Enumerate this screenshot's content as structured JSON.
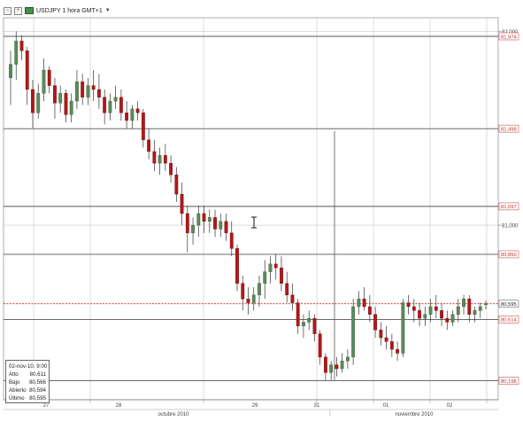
{
  "toolbar": {
    "minimize_icon": "minus-box-icon",
    "expand_icon": "plus-box-icon",
    "title": "USDJPY 1 hora GMT+1",
    "dropdown_icon": "chevron-down-icon"
  },
  "ohlc_panel": {
    "date": "02-nov-10, 9:00",
    "rows": [
      {
        "label": "Alto",
        "value": "80,611"
      },
      {
        "label": "Bajo",
        "value": "80,566"
      },
      {
        "label": "Abierto",
        "value": "80,594"
      },
      {
        "label": "Último",
        "value": "80,595"
      }
    ]
  },
  "chart_data": {
    "type": "candlestick",
    "instrument": "USDJPY",
    "timeframe": "1 hora GMT+1",
    "colors": {
      "up": "#5a8a5a",
      "down": "#b01818",
      "wick": "#333333",
      "grid": "#c8c8c8",
      "current_price_line": "#cc2222"
    },
    "ylim": [
      80.1,
      82.07
    ],
    "y_ticks": [
      {
        "value": 82.0,
        "label": "82,000"
      },
      {
        "value": 81.0,
        "label": "81,000"
      }
    ],
    "horizontal_levels": [
      {
        "value": 81.974,
        "label": "81,974"
      },
      {
        "value": 81.498,
        "label": "81,498"
      },
      {
        "value": 81.097,
        "label": "81,097"
      },
      {
        "value": 80.85,
        "label": "80,850"
      },
      {
        "value": 80.514,
        "label": "80,514"
      },
      {
        "value": 80.198,
        "label": "80,198"
      }
    ],
    "current_price": {
      "value": 80.595,
      "label": "80,595"
    },
    "x_day_labels": [
      "27",
      "28",
      "29",
      "31",
      "01",
      "02"
    ],
    "x_month_labels": [
      "octubre 2010",
      "noviembre 2010"
    ],
    "grid": true,
    "candles": [
      [
        81.76,
        81.9,
        81.62,
        81.83
      ],
      [
        81.83,
        82.0,
        81.75,
        81.95
      ],
      [
        81.95,
        81.98,
        81.85,
        81.9
      ],
      [
        81.9,
        81.92,
        81.62,
        81.7
      ],
      [
        81.7,
        81.75,
        81.5,
        81.58
      ],
      [
        81.58,
        81.73,
        81.55,
        81.68
      ],
      [
        81.68,
        81.86,
        81.64,
        81.8
      ],
      [
        81.8,
        81.82,
        81.68,
        81.72
      ],
      [
        81.72,
        81.76,
        81.55,
        81.63
      ],
      [
        81.63,
        81.72,
        81.58,
        81.68
      ],
      [
        81.68,
        81.7,
        81.53,
        81.57
      ],
      [
        81.57,
        81.68,
        81.53,
        81.64
      ],
      [
        81.64,
        81.8,
        81.6,
        81.74
      ],
      [
        81.74,
        81.78,
        81.62,
        81.66
      ],
      [
        81.66,
        81.76,
        81.62,
        81.72
      ],
      [
        81.72,
        81.8,
        81.64,
        81.7
      ],
      [
        81.7,
        81.78,
        81.6,
        81.66
      ],
      [
        81.66,
        81.7,
        81.52,
        81.58
      ],
      [
        81.58,
        81.68,
        81.54,
        81.64
      ],
      [
        81.64,
        81.72,
        81.6,
        81.66
      ],
      [
        81.66,
        81.7,
        81.54,
        81.58
      ],
      [
        81.58,
        81.64,
        81.5,
        81.54
      ],
      [
        81.54,
        81.62,
        81.5,
        81.6
      ],
      [
        81.6,
        81.64,
        81.54,
        81.58
      ],
      [
        81.58,
        81.6,
        81.4,
        81.44
      ],
      [
        81.44,
        81.5,
        81.34,
        81.38
      ],
      [
        81.38,
        81.44,
        81.28,
        81.32
      ],
      [
        81.32,
        81.4,
        81.26,
        81.36
      ],
      [
        81.36,
        81.42,
        81.28,
        81.32
      ],
      [
        81.32,
        81.36,
        81.22,
        81.26
      ],
      [
        81.26,
        81.3,
        81.12,
        81.16
      ],
      [
        81.16,
        81.22,
        81.0,
        81.06
      ],
      [
        81.06,
        81.1,
        80.86,
        80.96
      ],
      [
        80.96,
        81.04,
        80.9,
        81.0
      ],
      [
        81.0,
        81.1,
        80.94,
        81.06
      ],
      [
        81.06,
        81.1,
        80.96,
        81.02
      ],
      [
        81.02,
        81.08,
        80.96,
        81.04
      ],
      [
        81.04,
        81.08,
        80.94,
        80.98
      ],
      [
        80.98,
        81.06,
        80.94,
        81.02
      ],
      [
        81.02,
        81.06,
        80.92,
        80.96
      ],
      [
        80.96,
        81.02,
        80.84,
        80.88
      ],
      [
        80.88,
        80.9,
        80.66,
        80.7
      ],
      [
        80.7,
        80.74,
        80.56,
        80.62
      ],
      [
        80.62,
        80.68,
        80.54,
        80.6
      ],
      [
        80.6,
        80.68,
        80.56,
        80.64
      ],
      [
        80.64,
        80.74,
        80.58,
        80.7
      ],
      [
        80.7,
        80.82,
        80.62,
        80.76
      ],
      [
        80.76,
        80.84,
        80.7,
        80.8
      ],
      [
        80.8,
        80.85,
        80.72,
        80.78
      ],
      [
        80.78,
        80.84,
        80.66,
        80.7
      ],
      [
        80.7,
        80.76,
        80.6,
        80.64
      ],
      [
        80.64,
        80.7,
        80.56,
        80.6
      ],
      [
        80.6,
        80.62,
        80.44,
        80.48
      ],
      [
        80.48,
        80.54,
        80.42,
        80.5
      ],
      [
        80.5,
        80.56,
        80.46,
        80.52
      ],
      [
        80.52,
        80.54,
        80.4,
        80.44
      ],
      [
        80.44,
        80.46,
        80.28,
        80.32
      ],
      [
        80.32,
        80.34,
        80.2,
        80.24
      ],
      [
        80.24,
        80.3,
        80.2,
        80.28
      ],
      [
        80.28,
        80.32,
        80.22,
        80.26
      ],
      [
        80.26,
        80.34,
        80.24,
        80.3
      ],
      [
        80.3,
        80.36,
        80.26,
        80.32
      ],
      [
        80.32,
        80.62,
        80.28,
        80.58
      ],
      [
        80.58,
        80.66,
        80.54,
        80.62
      ],
      [
        80.62,
        80.68,
        80.56,
        80.58
      ],
      [
        80.58,
        80.64,
        80.5,
        80.54
      ],
      [
        80.54,
        80.58,
        80.42,
        80.46
      ],
      [
        80.46,
        80.5,
        80.38,
        80.42
      ],
      [
        80.42,
        80.48,
        80.36,
        80.4
      ],
      [
        80.4,
        80.44,
        80.32,
        80.36
      ],
      [
        80.36,
        80.4,
        80.3,
        80.34
      ],
      [
        80.34,
        80.62,
        80.32,
        80.6
      ],
      [
        80.6,
        80.64,
        80.54,
        80.58
      ],
      [
        80.58,
        80.62,
        80.5,
        80.56
      ],
      [
        80.56,
        80.6,
        80.48,
        80.52
      ],
      [
        80.52,
        80.58,
        80.48,
        80.54
      ],
      [
        80.54,
        80.62,
        80.5,
        80.58
      ],
      [
        80.58,
        80.64,
        80.52,
        80.56
      ],
      [
        80.56,
        80.6,
        80.48,
        80.52
      ],
      [
        80.52,
        80.56,
        80.46,
        80.5
      ],
      [
        80.5,
        80.56,
        80.48,
        80.54
      ],
      [
        80.54,
        80.62,
        80.5,
        80.58
      ],
      [
        80.58,
        80.64,
        80.54,
        80.62
      ],
      [
        80.62,
        80.64,
        80.5,
        80.54
      ],
      [
        80.54,
        80.58,
        80.5,
        80.56
      ],
      [
        80.56,
        80.6,
        80.52,
        80.58
      ],
      [
        80.594,
        80.611,
        80.566,
        80.595
      ]
    ]
  }
}
